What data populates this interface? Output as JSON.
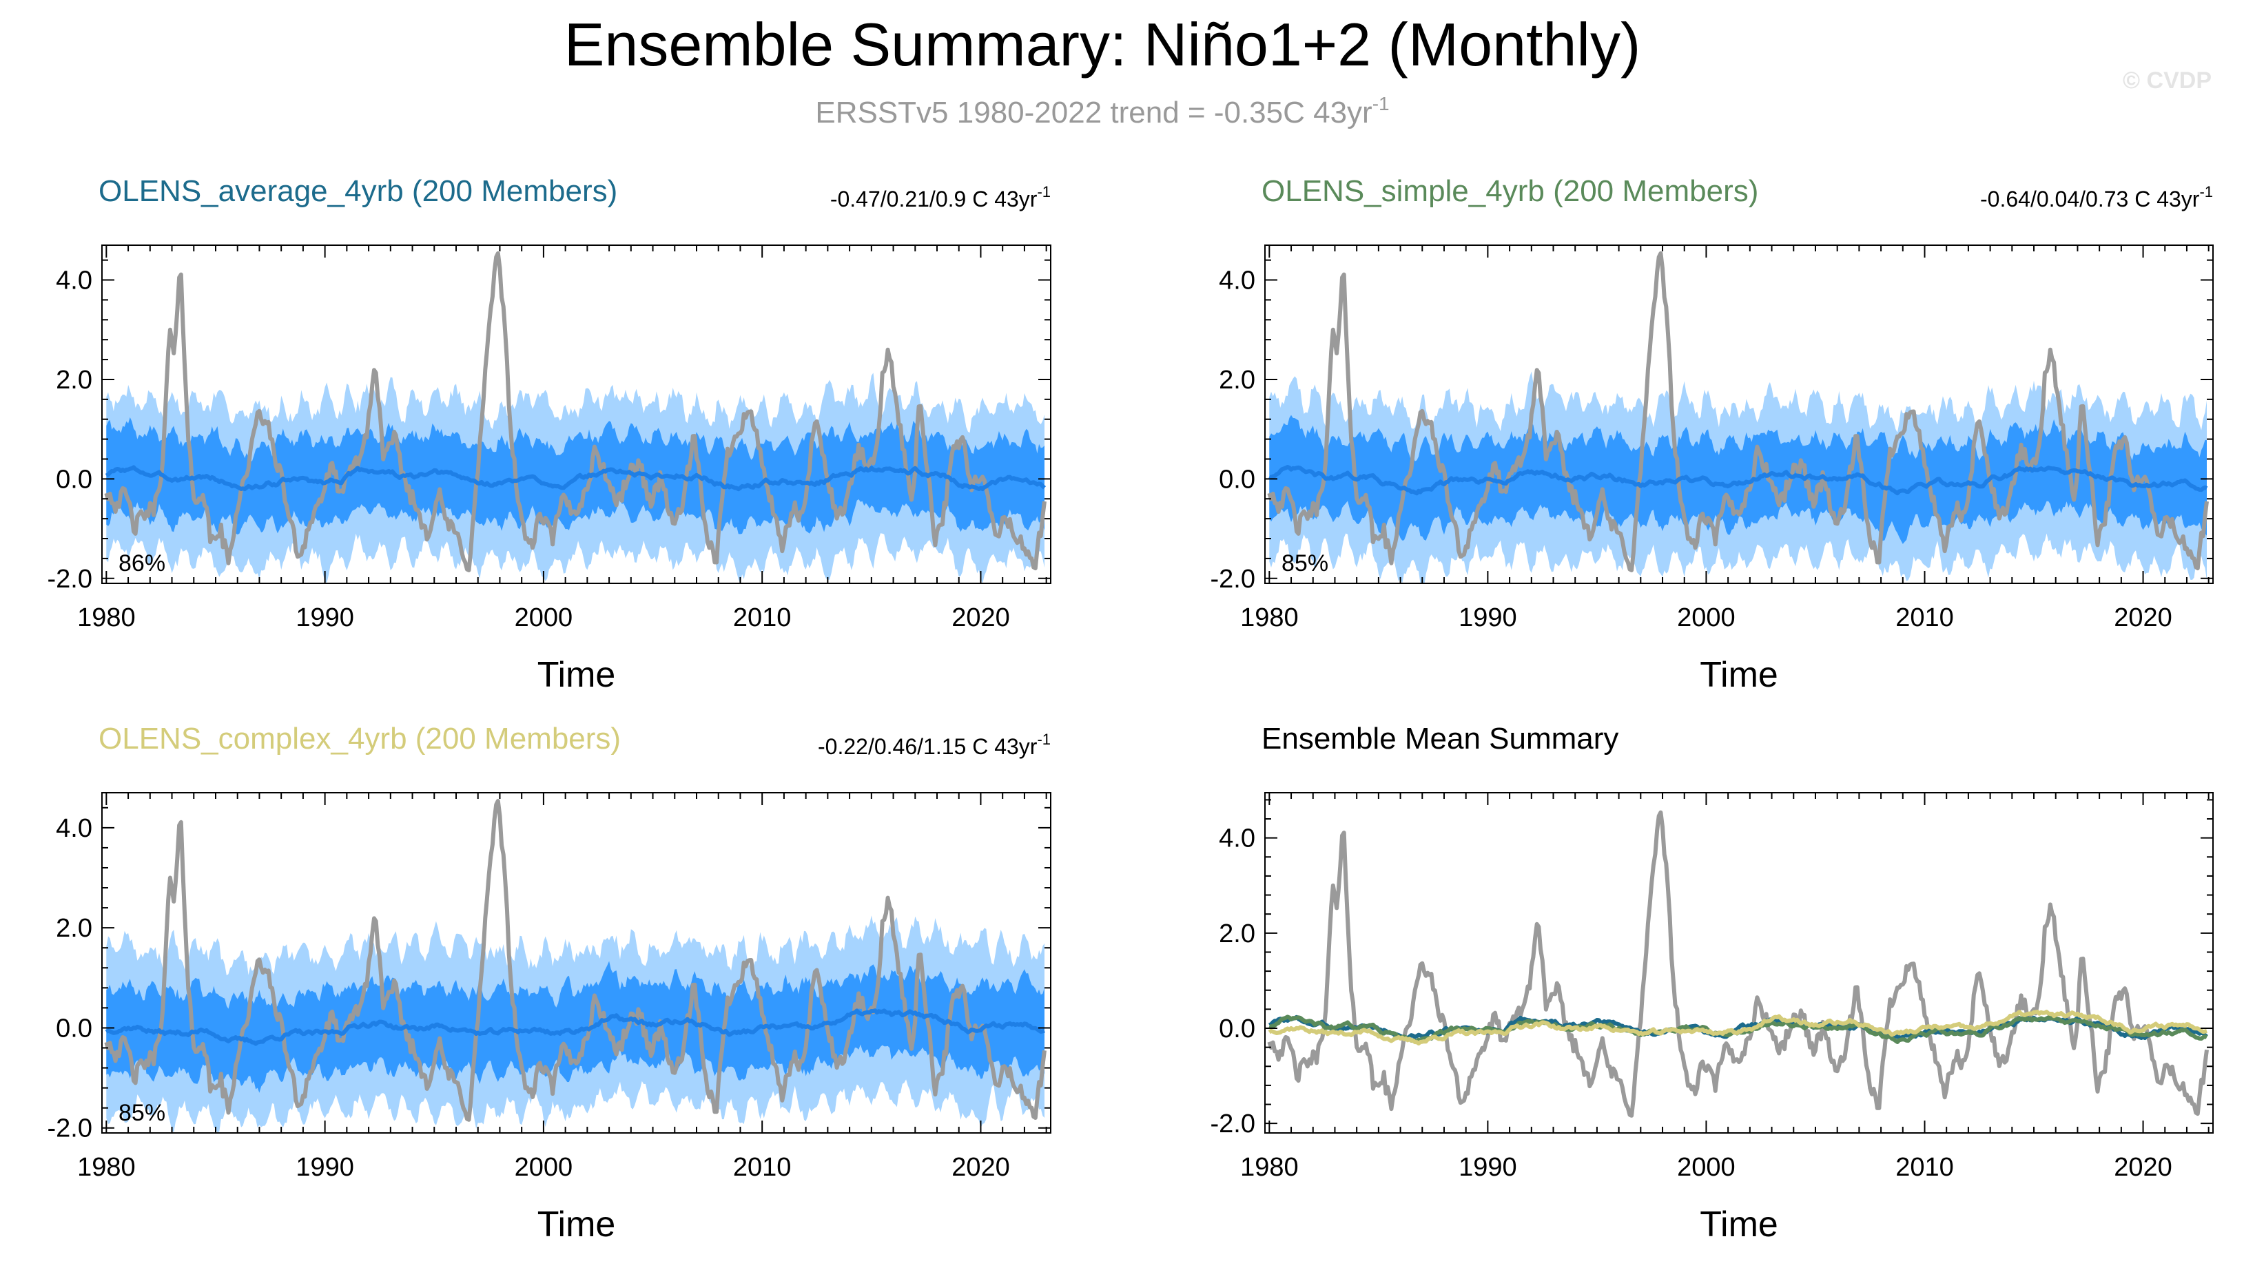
{
  "page": {
    "title": "Ensemble Summary: Niño1+2 (Monthly)",
    "subtitle_main": "ERSSTv5 1980-2022 trend = -0.35C 43yr",
    "subtitle_sup": "-1",
    "watermark": "© CVDP"
  },
  "colors": {
    "obs": "#9a9a9a",
    "band_outer": "#a6d4ff",
    "band_inner": "#3399ff",
    "ens_mean": "#1e7fe6",
    "average": "#1c6b8c",
    "simple": "#5a8a5a",
    "complex": "#d4cc7a"
  },
  "chart_data": [
    {
      "id": "average",
      "type": "line",
      "title": "OLENS_average_4yrb (200 Members)",
      "title_color": "#1c6b8c",
      "trend_text": "-0.47/0.21/0.9 C 43yr",
      "trend_sup": "-1",
      "pct_label": "86%",
      "xlabel": "Time",
      "ylabel": "",
      "xlim": [
        1979.8,
        2023.2
      ],
      "ylim": [
        -2.1,
        4.7
      ],
      "xticks": [
        1980,
        1990,
        2000,
        2010,
        2020
      ],
      "xtick_labels": [
        "1980",
        "1990",
        "2000",
        "2010",
        "2020"
      ],
      "yticks": [
        -2,
        0,
        2,
        4
      ],
      "ytick_labels": [
        "-2.0",
        "0.0",
        "2.0",
        "4.0"
      ],
      "series": [
        {
          "name": "ERSSTv5 observed",
          "role": "obs"
        },
        {
          "name": "ensemble 10-90% range",
          "role": "band_outer",
          "approx_range": [
            -1.6,
            1.5
          ]
        },
        {
          "name": "ensemble 25-75% range",
          "role": "band_inner",
          "approx_range": [
            -0.8,
            0.8
          ]
        },
        {
          "name": "ensemble mean",
          "role": "mean",
          "bias": 0.0,
          "trend_per_43yr": 0.0
        }
      ]
    },
    {
      "id": "simple",
      "type": "line",
      "title": "OLENS_simple_4yrb (200 Members)",
      "title_color": "#5a8a5a",
      "trend_text": "-0.64/0.04/0.73 C 43yr",
      "trend_sup": "-1",
      "pct_label": "85%",
      "xlabel": "Time",
      "ylabel": "",
      "xlim": [
        1979.8,
        2023.2
      ],
      "ylim": [
        -2.1,
        4.7
      ],
      "xticks": [
        1980,
        1990,
        2000,
        2010,
        2020
      ],
      "xtick_labels": [
        "1980",
        "1990",
        "2000",
        "2010",
        "2020"
      ],
      "yticks": [
        -2,
        0,
        2,
        4
      ],
      "ytick_labels": [
        "-2.0",
        "0.0",
        "2.0",
        "4.0"
      ],
      "series": [
        {
          "name": "ERSSTv5 observed",
          "role": "obs"
        },
        {
          "name": "ensemble 10-90% range",
          "role": "band_outer",
          "approx_range": [
            -1.6,
            1.5
          ]
        },
        {
          "name": "ensemble 25-75% range",
          "role": "band_inner",
          "approx_range": [
            -0.8,
            0.8
          ]
        },
        {
          "name": "ensemble mean",
          "role": "mean",
          "bias": -0.02,
          "trend_per_43yr": -0.02
        }
      ]
    },
    {
      "id": "complex",
      "type": "line",
      "title": "OLENS_complex_4yrb (200 Members)",
      "title_color": "#d4cc7a",
      "trend_text": "-0.22/0.46/1.15 C 43yr",
      "trend_sup": "-1",
      "pct_label": "85%",
      "xlabel": "Time",
      "ylabel": "",
      "xlim": [
        1979.8,
        2023.2
      ],
      "ylim": [
        -2.1,
        4.7
      ],
      "xticks": [
        1980,
        1990,
        2000,
        2010,
        2020
      ],
      "xtick_labels": [
        "1980",
        "1990",
        "2000",
        "2010",
        "2020"
      ],
      "yticks": [
        -2,
        0,
        2,
        4
      ],
      "ytick_labels": [
        "-2.0",
        "0.0",
        "2.0",
        "4.0"
      ],
      "series": [
        {
          "name": "ERSSTv5 observed",
          "role": "obs"
        },
        {
          "name": "ensemble 10-90% range",
          "role": "band_outer",
          "approx_range": [
            -1.6,
            1.6
          ]
        },
        {
          "name": "ensemble 25-75% range",
          "role": "band_inner",
          "approx_range": [
            -0.8,
            0.8
          ]
        },
        {
          "name": "ensemble mean",
          "role": "mean",
          "bias": -0.15,
          "trend_per_43yr": 0.3
        }
      ]
    },
    {
      "id": "summary",
      "type": "line",
      "title": "Ensemble Mean Summary",
      "title_color": "#000000",
      "xlabel": "Time",
      "ylabel": "",
      "xlim": [
        1979.8,
        2023.2
      ],
      "ylim": [
        -2.2,
        4.95
      ],
      "xticks": [
        1980,
        1990,
        2000,
        2010,
        2020
      ],
      "xtick_labels": [
        "1980",
        "1990",
        "2000",
        "2010",
        "2020"
      ],
      "yticks": [
        -2,
        0,
        2,
        4
      ],
      "ytick_labels": [
        "-2.0",
        "0.0",
        "2.0",
        "4.0"
      ],
      "series": [
        {
          "name": "ERSSTv5 observed",
          "role": "obs"
        },
        {
          "name": "OLENS_average_4yrb mean",
          "role": "avg_mean"
        },
        {
          "name": "OLENS_simple_4yrb mean",
          "role": "simple_mean"
        },
        {
          "name": "OLENS_complex_4yrb mean",
          "role": "complex_mean"
        }
      ]
    }
  ],
  "obs_anchors": [
    [
      1980.0,
      -0.2
    ],
    [
      1980.4,
      -0.5
    ],
    [
      1980.9,
      -0.3
    ],
    [
      1981.3,
      -1.0
    ],
    [
      1981.7,
      -0.7
    ],
    [
      1982.2,
      -0.6
    ],
    [
      1982.6,
      0.4
    ],
    [
      1982.9,
      3.1
    ],
    [
      1983.1,
      2.4
    ],
    [
      1983.4,
      4.3
    ],
    [
      1983.7,
      1.2
    ],
    [
      1984.0,
      -0.5
    ],
    [
      1984.4,
      -0.2
    ],
    [
      1984.8,
      -1.3
    ],
    [
      1985.2,
      -1.0
    ],
    [
      1985.6,
      -1.7
    ],
    [
      1986.0,
      -0.5
    ],
    [
      1986.5,
      0.3
    ],
    [
      1987.0,
      1.4
    ],
    [
      1987.4,
      1.0
    ],
    [
      1987.9,
      0.2
    ],
    [
      1988.3,
      -0.6
    ],
    [
      1988.8,
      -1.6
    ],
    [
      1989.3,
      -0.9
    ],
    [
      1989.8,
      -0.4
    ],
    [
      1990.3,
      0.2
    ],
    [
      1990.8,
      -0.3
    ],
    [
      1991.3,
      0.3
    ],
    [
      1991.8,
      0.6
    ],
    [
      1992.3,
      2.3
    ],
    [
      1992.7,
      0.4
    ],
    [
      1993.2,
      0.8
    ],
    [
      1993.7,
      -0.1
    ],
    [
      1994.2,
      -0.6
    ],
    [
      1994.7,
      -1.1
    ],
    [
      1995.2,
      -0.3
    ],
    [
      1995.6,
      -0.9
    ],
    [
      1996.1,
      -1.2
    ],
    [
      1996.6,
      -1.8
    ],
    [
      1997.0,
      0.2
    ],
    [
      1997.4,
      2.5
    ],
    [
      1997.7,
      3.9
    ],
    [
      1997.9,
      4.5
    ],
    [
      1998.2,
      3.3
    ],
    [
      1998.5,
      1.0
    ],
    [
      1998.9,
      -0.7
    ],
    [
      1999.4,
      -1.4
    ],
    [
      1999.9,
      -0.7
    ],
    [
      2000.4,
      -1.2
    ],
    [
      2000.9,
      -0.4
    ],
    [
      2001.4,
      -0.7
    ],
    [
      2001.9,
      -0.3
    ],
    [
      2002.4,
      0.6
    ],
    [
      2002.9,
      0.0
    ],
    [
      2003.4,
      -0.5
    ],
    [
      2003.9,
      0.1
    ],
    [
      2004.4,
      0.3
    ],
    [
      2004.9,
      -0.5
    ],
    [
      2005.4,
      0.1
    ],
    [
      2005.9,
      -1.0
    ],
    [
      2006.4,
      -0.4
    ],
    [
      2006.9,
      0.9
    ],
    [
      2007.4,
      -1.1
    ],
    [
      2007.9,
      -1.6
    ],
    [
      2008.4,
      0.5
    ],
    [
      2008.9,
      1.0
    ],
    [
      2009.4,
      1.4
    ],
    [
      2009.9,
      0.6
    ],
    [
      2010.4,
      -0.5
    ],
    [
      2010.9,
      -1.4
    ],
    [
      2011.4,
      -0.6
    ],
    [
      2011.9,
      -0.8
    ],
    [
      2012.4,
      1.2
    ],
    [
      2012.9,
      0.3
    ],
    [
      2013.4,
      -0.8
    ],
    [
      2013.9,
      -0.4
    ],
    [
      2014.4,
      0.6
    ],
    [
      2014.9,
      0.2
    ],
    [
      2015.2,
      0.5
    ],
    [
      2015.5,
      2.0
    ],
    [
      2015.8,
      2.55
    ],
    [
      2016.1,
      1.7
    ],
    [
      2016.5,
      0.4
    ],
    [
      2016.9,
      -0.4
    ],
    [
      2017.2,
      1.6
    ],
    [
      2017.6,
      0.1
    ],
    [
      2017.9,
      -1.2
    ],
    [
      2018.3,
      -0.7
    ],
    [
      2018.8,
      0.7
    ],
    [
      2019.2,
      0.8
    ],
    [
      2019.6,
      -0.3
    ],
    [
      2019.9,
      0.1
    ],
    [
      2020.3,
      -0.3
    ],
    [
      2020.7,
      -1.3
    ],
    [
      2021.1,
      -0.7
    ],
    [
      2021.6,
      -1.2
    ],
    [
      2022.0,
      -1.4
    ],
    [
      2022.5,
      -1.7
    ],
    [
      2022.8,
      -0.9
    ],
    [
      2022.95,
      -0.5
    ]
  ]
}
